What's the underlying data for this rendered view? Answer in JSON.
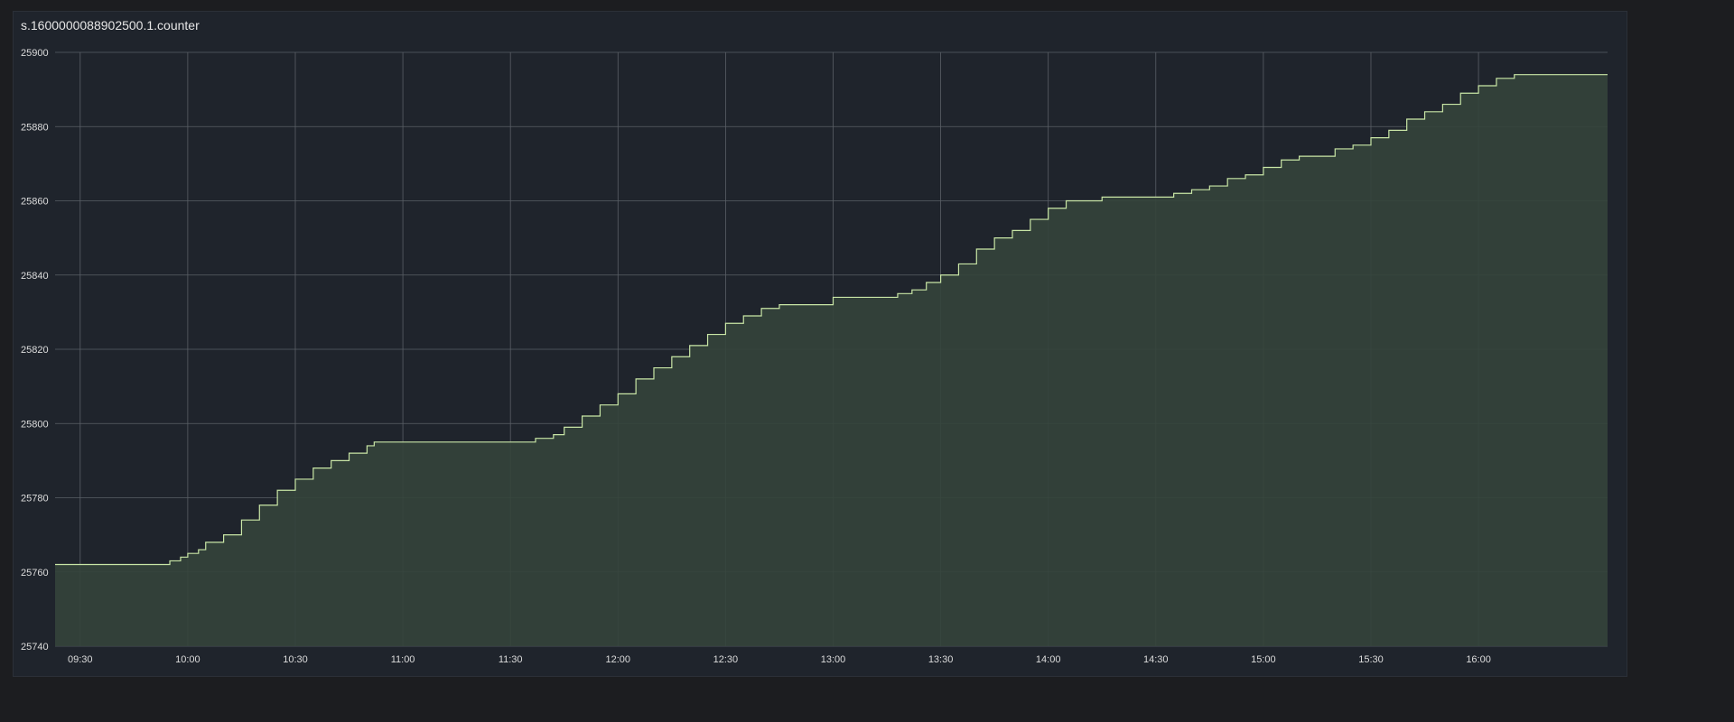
{
  "panel": {
    "title": "s.1600000088902500.1.counter"
  },
  "colors": {
    "background": "#1c1d20",
    "panel": "#1f242c",
    "grid": "#5a5f66",
    "line": "#c9e6a6",
    "fill": "#34443b"
  },
  "chart_data": {
    "type": "area",
    "step": true,
    "title": "s.1600000088902500.1.counter",
    "xlabel": "",
    "ylabel": "",
    "grid": true,
    "legend": "none",
    "x_range": [
      "09:23",
      "16:36"
    ],
    "ylim": [
      25740,
      25900
    ],
    "y_ticks": [
      25740,
      25760,
      25780,
      25800,
      25820,
      25840,
      25860,
      25880,
      25900
    ],
    "x_ticks": [
      "09:30",
      "10:00",
      "10:30",
      "11:00",
      "11:30",
      "12:00",
      "12:30",
      "13:00",
      "13:30",
      "14:00",
      "14:30",
      "15:00",
      "15:30",
      "16:00"
    ],
    "series": [
      {
        "x": [
          "09:23",
          "09:55",
          "09:58",
          "10:00",
          "10:03",
          "10:05",
          "10:10",
          "10:15",
          "10:20",
          "10:25",
          "10:30",
          "10:35",
          "10:40",
          "10:45",
          "10:50",
          "10:52",
          "11:00",
          "11:20",
          "11:35",
          "11:37",
          "11:42",
          "11:45",
          "11:50",
          "11:55",
          "12:00",
          "12:05",
          "12:10",
          "12:15",
          "12:20",
          "12:25",
          "12:30",
          "12:35",
          "12:40",
          "12:45",
          "13:00",
          "13:15",
          "13:18",
          "13:22",
          "13:26",
          "13:30",
          "13:35",
          "13:40",
          "13:45",
          "13:50",
          "13:55",
          "14:00",
          "14:05",
          "14:15",
          "14:35",
          "14:40",
          "14:45",
          "14:50",
          "14:55",
          "15:00",
          "15:05",
          "15:10",
          "15:20",
          "15:25",
          "15:30",
          "15:35",
          "15:40",
          "15:45",
          "15:50",
          "15:55",
          "16:00",
          "16:05",
          "16:10",
          "16:36"
        ],
        "y": [
          25762,
          25763,
          25764,
          25765,
          25766,
          25768,
          25770,
          25774,
          25778,
          25782,
          25785,
          25788,
          25790,
          25792,
          25794,
          25795,
          25795,
          25795,
          25795,
          25796,
          25797,
          25799,
          25802,
          25805,
          25808,
          25812,
          25815,
          25818,
          25821,
          25824,
          25827,
          25829,
          25831,
          25832,
          25834,
          25834,
          25835,
          25836,
          25838,
          25840,
          25843,
          25847,
          25850,
          25852,
          25855,
          25858,
          25860,
          25861,
          25862,
          25863,
          25864,
          25866,
          25867,
          25869,
          25871,
          25872,
          25874,
          25875,
          25877,
          25879,
          25882,
          25884,
          25886,
          25889,
          25891,
          25893,
          25894,
          25894
        ]
      }
    ]
  }
}
